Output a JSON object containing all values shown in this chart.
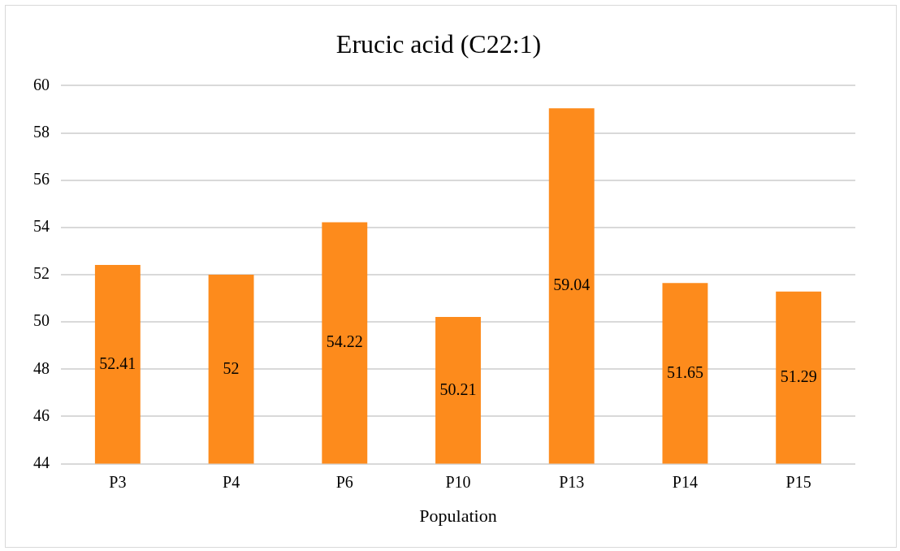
{
  "chart_data": {
    "type": "bar",
    "title": "Erucic acid (C22:1)",
    "xlabel": "Population",
    "categories": [
      "P3",
      "P4",
      "P6",
      "P10",
      "P13",
      "P14",
      "P15"
    ],
    "values": [
      52.41,
      52,
      54.22,
      50.21,
      59.04,
      51.65,
      51.29
    ],
    "color": "#fd8b1c",
    "ylim": [
      44,
      60
    ],
    "yticks": [
      44,
      46,
      48,
      50,
      52,
      54,
      56,
      58,
      60
    ],
    "grid": "y",
    "data_labels": true
  }
}
